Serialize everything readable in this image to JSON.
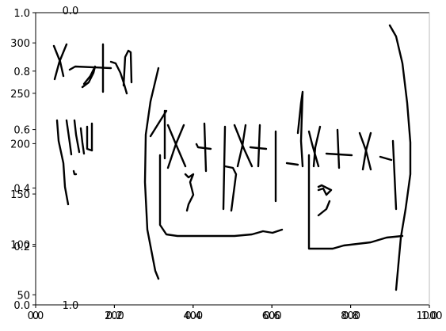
{
  "chart_data": {
    "type": "other",
    "description_of_axes": "overlapping axes sets with different ranges",
    "axes": [
      {
        "name": "normalized",
        "xlim": [
          0.0,
          1.0
        ],
        "ylim": [
          0.0,
          1.0
        ],
        "x_ticks": [
          "0.0",
          "0.2",
          "0.4",
          "0.6",
          "0.8",
          "1.0"
        ],
        "y_ticks": [
          "0.0",
          "0.2",
          "0.4",
          "0.6",
          "0.8",
          "1.0"
        ]
      },
      {
        "name": "pixel",
        "xlim": [
          0,
          1000
        ],
        "ylim": [
          40,
          330
        ],
        "x_ticks": [
          "0",
          "200",
          "400",
          "600",
          "800",
          "1000"
        ],
        "y_ticks": [
          "50",
          "100",
          "150",
          "200",
          "250",
          "300"
        ]
      }
    ],
    "extra_labels": [
      "0.0",
      "1.0"
    ]
  }
}
